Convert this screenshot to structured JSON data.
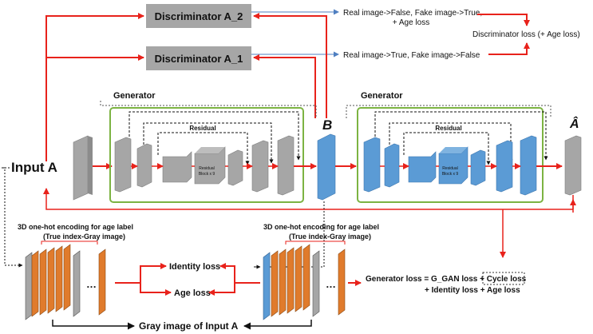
{
  "discriminators": {
    "d2_label": "Discriminator A_2",
    "d1_label": "Discriminator A_1"
  },
  "annotations": {
    "d2_line1": "Real image->False, Fake image->True,",
    "d2_line2": "+ Age loss",
    "d1_line": "Real image->True, Fake image->False",
    "disc_loss": "Discriminator loss (+ Age loss)"
  },
  "generators": {
    "g1_title": "Generator",
    "g2_title": "Generator",
    "residual_label": "Residual",
    "residual_block_line1": "Residual",
    "residual_block_line2": "Block x 9"
  },
  "nodes": {
    "input_label": "Input A",
    "b_label": "B",
    "a_hat_label": "Â"
  },
  "encoding": {
    "left_line1": "3D one-hot encoding for age label",
    "left_line2": "(True index-Gray image)",
    "right_line1": "3D one-hot encoding for age label",
    "right_line2": "(True index-Gray image)",
    "ellipsis": "…"
  },
  "losses": {
    "identity": "Identity loss",
    "age": "Age loss",
    "generator_line1_prefix": "Generator loss = G_GAN loss + ",
    "cycle": "Cycle loss",
    "generator_line2": "+ Identity loss + Age loss"
  },
  "bottom": {
    "gray_image_label": "Gray image of Input A"
  },
  "colors": {
    "red_arrow": "#e8221b",
    "blue_arrow": "#4f7fc1",
    "generator_border": "#7cb342",
    "gray_layer": "#a6a6a6",
    "blue_layer": "#5b9bd5",
    "orange_layer": "#e07b2c"
  }
}
